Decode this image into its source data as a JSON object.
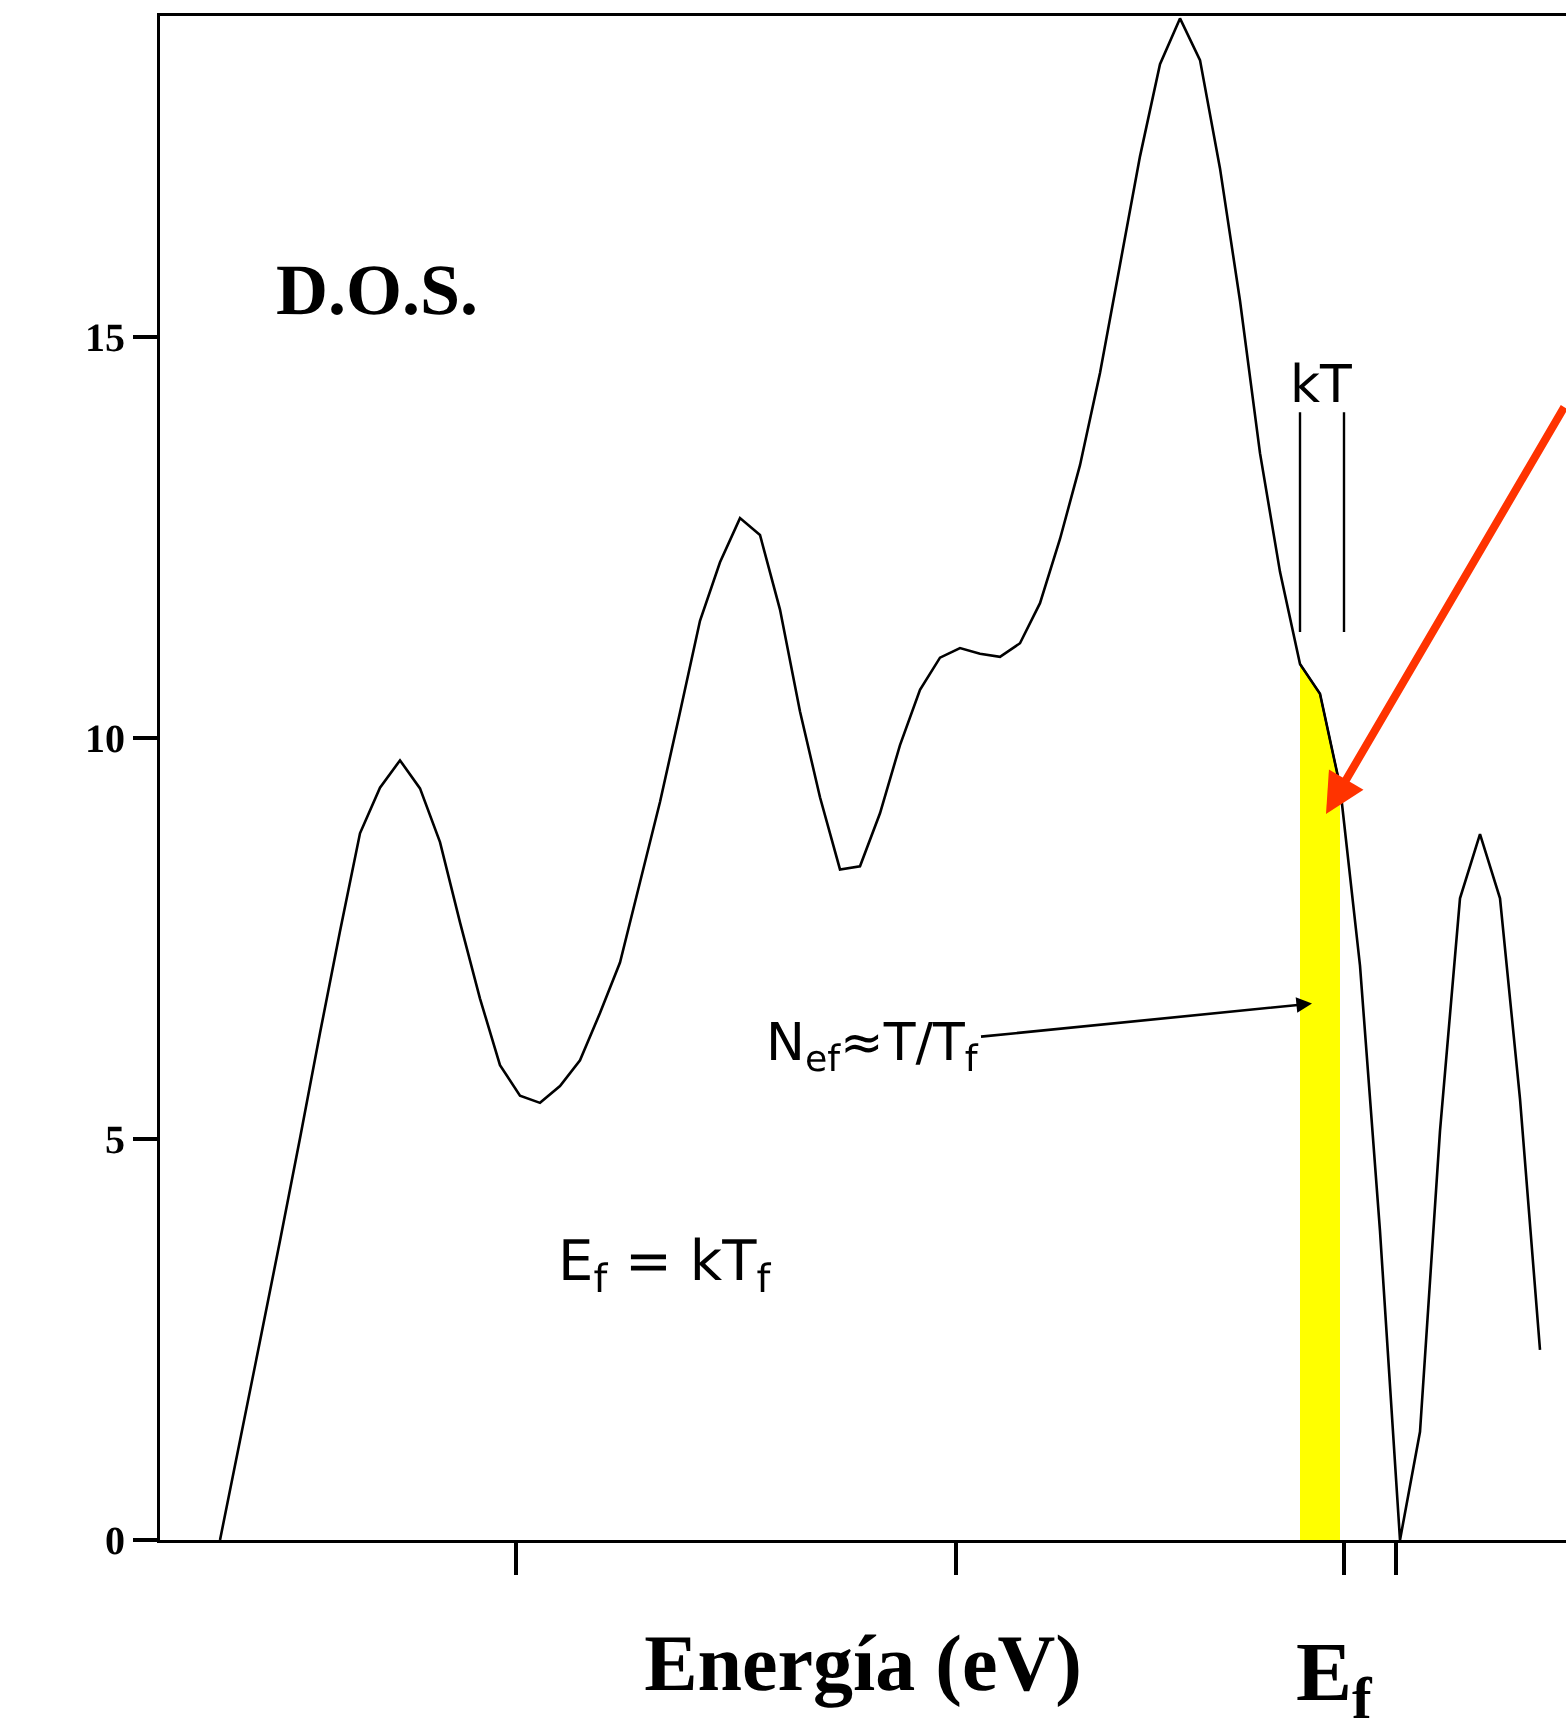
{
  "chart_data": {
    "type": "line",
    "xlabel": "Energía (eV)",
    "ylim": [
      0,
      19
    ],
    "yticks": [
      0,
      5,
      10,
      15
    ],
    "grid": false,
    "marker": "none",
    "line_style": "solid",
    "categories": [
      null,
      null,
      null,
      null,
      null,
      null,
      null,
      null,
      null,
      null,
      null,
      null,
      null,
      null,
      null,
      null,
      null,
      null,
      null,
      null,
      null,
      null,
      null,
      null,
      null,
      null,
      null,
      null,
      null,
      null,
      null,
      null,
      null,
      null,
      null,
      null,
      null,
      null,
      null,
      null,
      null,
      null,
      null,
      null,
      null,
      null,
      null,
      null,
      null,
      null,
      null,
      null,
      null,
      null,
      null,
      null,
      null,
      null,
      null,
      null,
      null,
      null,
      null,
      null,
      null,
      null,
      null
    ],
    "series": [
      {
        "color": "#000000",
        "values": [
          0,
          1.24,
          2.48,
          3.73,
          5.01,
          6.32,
          7.59,
          8.81,
          9.38,
          9.72,
          9.37,
          8.7,
          7.7,
          6.75,
          5.92,
          5.54,
          5.45,
          5.66,
          5.98,
          6.57,
          7.2,
          8.2,
          9.2,
          10.32,
          11.46,
          12.19,
          12.74,
          12.53,
          11.6,
          10.33,
          9.26,
          8.36,
          8.4,
          9.06,
          9.91,
          10.6,
          11.0,
          11.12,
          11.05,
          11.01,
          11.18,
          11.68,
          12.48,
          13.4,
          14.55,
          15.9,
          17.25,
          18.4,
          18.97,
          18.45,
          17.1,
          15.45,
          13.55,
          12.07,
          10.92,
          10.55,
          9.4,
          7.16,
          3.85,
          0,
          1.35,
          5.1,
          8.0,
          8.8,
          8.0,
          5.5,
          2.37
        ]
      },
      {
        "type": "area",
        "color": "#ffff00",
        "values": [
          null,
          null,
          null,
          null,
          null,
          null,
          null,
          null,
          null,
          null,
          null,
          null,
          null,
          null,
          null,
          null,
          null,
          null,
          null,
          null,
          null,
          null,
          null,
          null,
          null,
          null,
          null,
          null,
          null,
          null,
          null,
          null,
          null,
          null,
          null,
          null,
          null,
          null,
          null,
          null,
          null,
          null,
          null,
          null,
          null,
          null,
          null,
          null,
          null,
          null,
          null,
          null,
          null,
          null,
          10.92,
          10.55,
          9.4,
          null,
          null,
          null,
          null,
          null,
          null,
          null,
          null,
          null,
          null
        ]
      }
    ],
    "annotations": [
      "D.O.S.",
      "kT",
      "N$_{ef}$≈T/T$_{f}$",
      "E$_{f}$ = kT$_{f}$",
      "E$_{f}$"
    ]
  }
}
